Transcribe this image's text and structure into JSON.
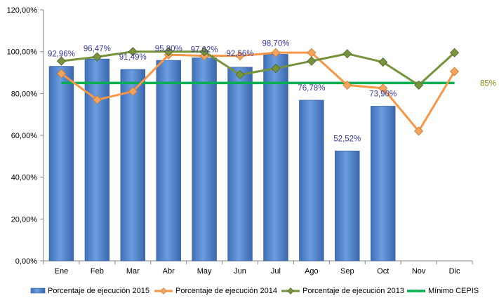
{
  "chart_data": {
    "type": "bar",
    "categories": [
      "Ene",
      "Feb",
      "Mar",
      "Abr",
      "May",
      "Jun",
      "Jul",
      "Ago",
      "Sep",
      "Oct",
      "Nov",
      "Dic"
    ],
    "ylim": [
      0,
      120
    ],
    "yticks": [
      0,
      20,
      40,
      60,
      80,
      100,
      120
    ],
    "ytick_labels": [
      "0,00%",
      "20,00%",
      "40,00%",
      "60,00%",
      "80,00%",
      "100,00%",
      "120,00%"
    ],
    "grid": false,
    "legend_placement": "bottom",
    "series": [
      {
        "name": "Porcentaje de ejecución 2015",
        "kind": "bar",
        "color": "#5b8fd6",
        "values": [
          92.96,
          96.47,
          91.49,
          95.8,
          97.02,
          92.56,
          98.7,
          76.78,
          52.52,
          73.9,
          null,
          null
        ],
        "labels": [
          "92,96%",
          "96,47%",
          "91,49%",
          "95,80%",
          "97,02%",
          "92,56%",
          "98,70%",
          "76,78%",
          "52,52%",
          "73,90%",
          "",
          ""
        ]
      },
      {
        "name": "Porcentaje de ejecución 2014",
        "kind": "line",
        "color": "#f79646",
        "values": [
          89.5,
          77,
          81,
          98.5,
          98,
          98,
          99.5,
          99.5,
          84,
          82.5,
          62,
          90.5
        ]
      },
      {
        "name": "Porcentaje de ejecución 2013",
        "kind": "line",
        "color": "#76923c",
        "values": [
          95.5,
          97.5,
          100,
          100,
          100,
          89,
          92,
          95.5,
          99,
          95,
          84,
          99.5
        ]
      },
      {
        "name": "Mínimo CEPIS",
        "kind": "hline",
        "color": "#00b050",
        "value": 85,
        "label": "85%"
      }
    ]
  }
}
